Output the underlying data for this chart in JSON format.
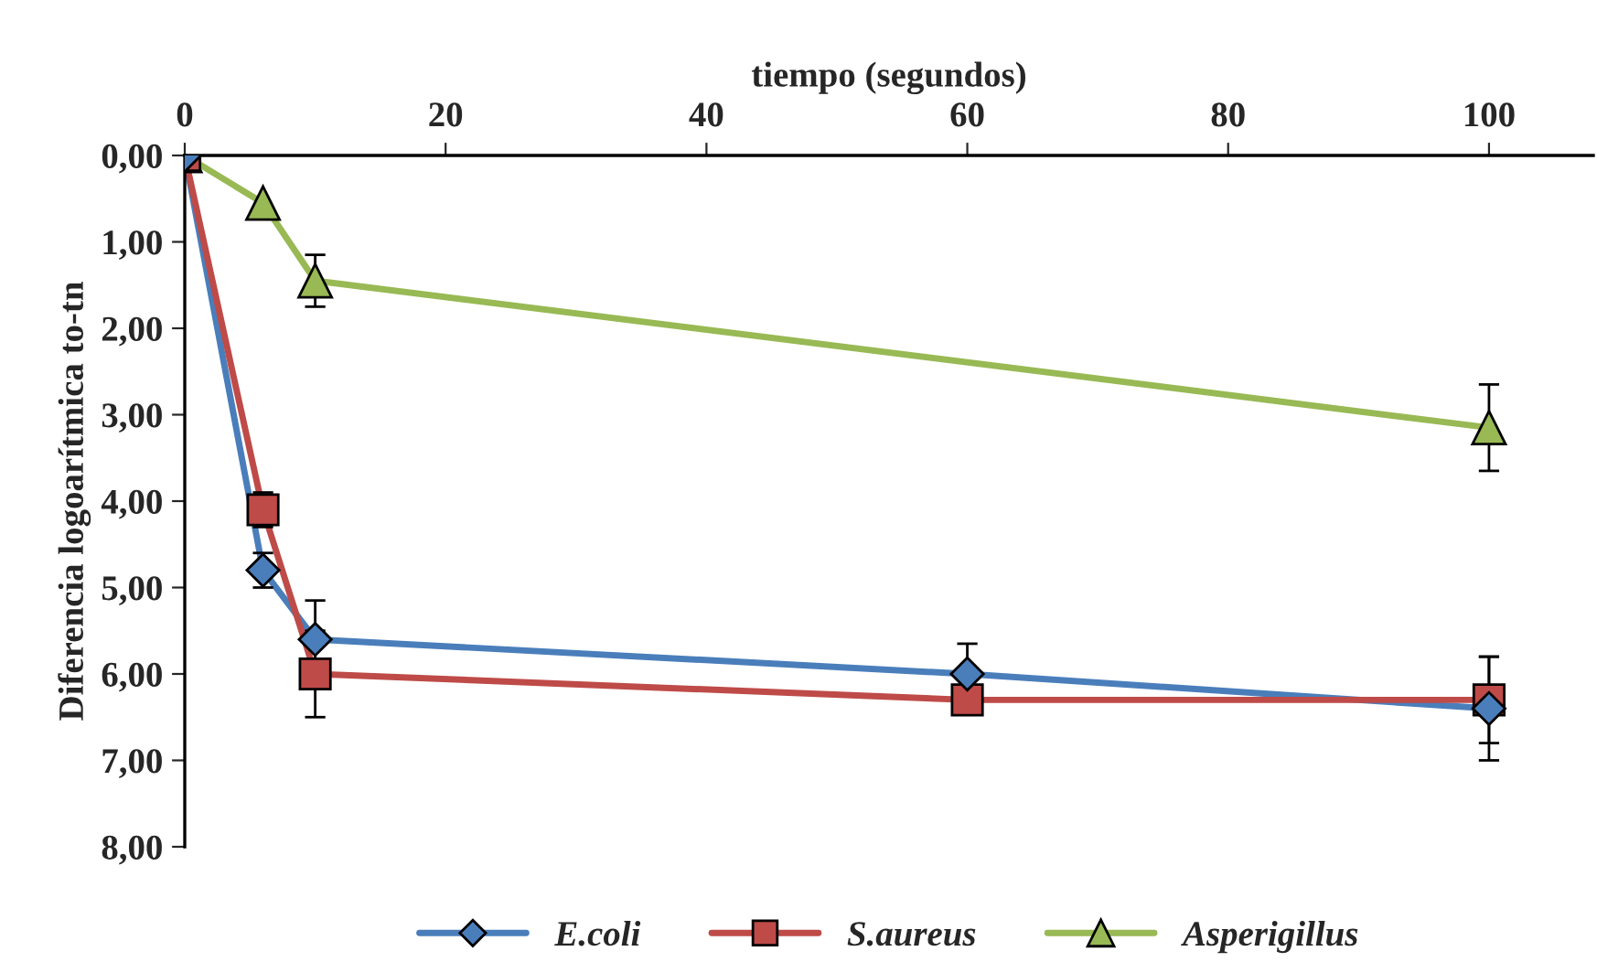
{
  "chart_data": {
    "type": "line",
    "xlabel": "tiempo (segundos)",
    "ylabel": "Diferencia logoarítmica to-tn",
    "x": [
      0,
      6,
      10,
      60,
      100
    ],
    "xlim": [
      0,
      108
    ],
    "xticks": [
      0,
      20,
      40,
      60,
      80,
      100
    ],
    "ylim": [
      8,
      0
    ],
    "yticks": [
      {
        "value": 0,
        "label": "0,00"
      },
      {
        "value": 1,
        "label": "1,00"
      },
      {
        "value": 2,
        "label": "2,00"
      },
      {
        "value": 3,
        "label": "3,00"
      },
      {
        "value": 4,
        "label": "4,00"
      },
      {
        "value": 5,
        "label": "5,00"
      },
      {
        "value": 6,
        "label": "6,00"
      },
      {
        "value": 7,
        "label": "7,00"
      },
      {
        "value": 8,
        "label": "8,00"
      }
    ],
    "grid": false,
    "legend": "bottom",
    "series": [
      {
        "name": "E.coli",
        "color": "#4a7ebb",
        "marker": "diamond",
        "values": [
          0,
          4.8,
          5.6,
          6.0,
          6.4
        ],
        "errors": [
          null,
          0.2,
          0.45,
          0.35,
          0.6
        ]
      },
      {
        "name": "S.aureus",
        "color": "#be4b48",
        "marker": "square",
        "values": [
          0,
          4.1,
          6.0,
          6.3,
          6.3
        ],
        "errors": [
          null,
          0.2,
          0.5,
          null,
          0.5
        ]
      },
      {
        "name": "Asperigillus",
        "color": "#98b954",
        "marker": "triangle",
        "values": [
          0,
          0.55,
          1.45,
          null,
          3.15
        ],
        "errors": [
          null,
          null,
          0.3,
          null,
          0.5
        ]
      }
    ]
  }
}
